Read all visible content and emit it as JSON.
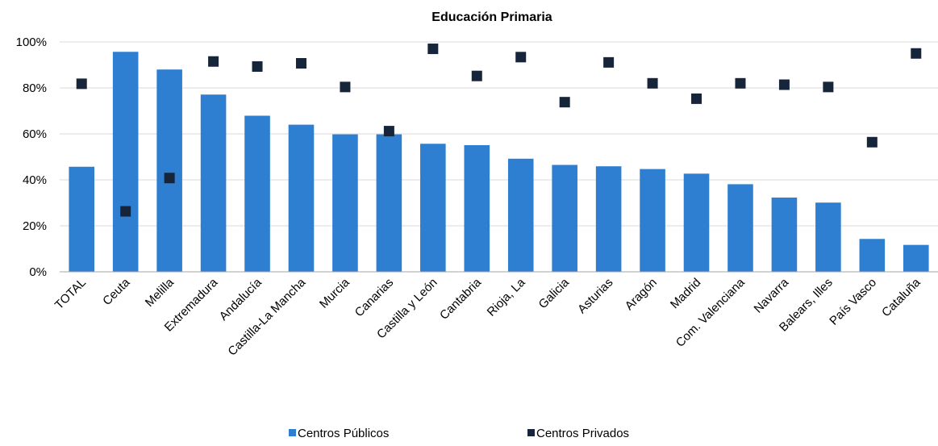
{
  "chart_data": {
    "type": "bar",
    "title": "Educación Primaria",
    "xlabel": "",
    "ylabel": "",
    "ylim": [
      0,
      1
    ],
    "y_ticks": [
      "0%",
      "20%",
      "40%",
      "60%",
      "80%",
      "100%"
    ],
    "grid": true,
    "legend_position": "bottom",
    "categories": [
      "TOTAL",
      "Ceuta",
      "Melilla",
      "Extremadura",
      "Andalucía",
      "Castilla-La Mancha",
      "Murcia",
      "Canarias",
      "Castilla y León",
      "Cantabria",
      "Rioja, La",
      "Galicia",
      "Asturias",
      "Aragón",
      "Madrid",
      "Com. Valenciana",
      "Navarra",
      "Balears, Illes",
      "País Vasco",
      "Cataluña"
    ],
    "series": [
      {
        "name": "Centros Públicos",
        "kind": "bar",
        "color": "#2e7fd1",
        "values": [
          0.457,
          0.957,
          0.88,
          0.771,
          0.679,
          0.64,
          0.598,
          0.598,
          0.557,
          0.551,
          0.492,
          0.465,
          0.459,
          0.447,
          0.427,
          0.381,
          0.323,
          0.301,
          0.143,
          0.117
        ]
      },
      {
        "name": "Centros Privados",
        "kind": "marker",
        "color": "#17253a",
        "values": [
          0.818,
          0.263,
          0.408,
          0.915,
          0.893,
          0.907,
          0.804,
          0.612,
          0.97,
          0.852,
          0.934,
          0.738,
          0.911,
          0.82,
          0.753,
          0.82,
          0.814,
          0.804,
          0.564,
          0.95
        ]
      }
    ]
  }
}
